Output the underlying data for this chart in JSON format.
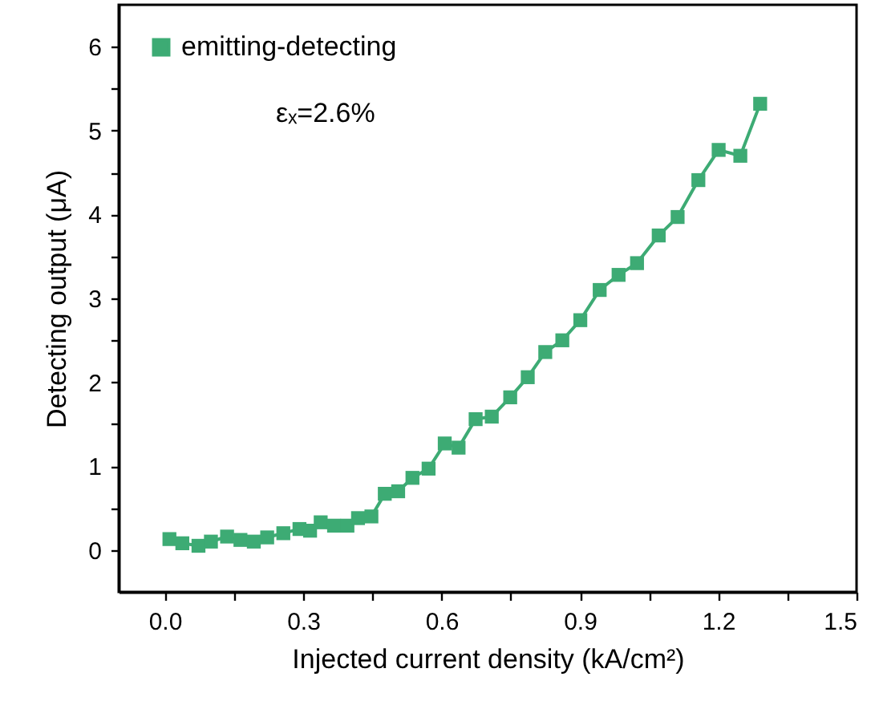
{
  "chart_data": {
    "type": "line",
    "xlabel": "Injected current density (kA/cm²)",
    "ylabel": "Detecting output (μA)",
    "annotations": [
      "εₓ=2.6%"
    ],
    "x": [
      0.01,
      0.038,
      0.073,
      0.1,
      0.135,
      0.164,
      0.193,
      0.222,
      0.257,
      0.292,
      0.315,
      0.338,
      0.367,
      0.396,
      0.419,
      0.448,
      0.477,
      0.506,
      0.537,
      0.572,
      0.607,
      0.637,
      0.674,
      0.709,
      0.749,
      0.787,
      0.825,
      0.862,
      0.901,
      0.943,
      0.984,
      1.024,
      1.071,
      1.112,
      1.157,
      1.201,
      1.248,
      1.291
    ],
    "series": [
      {
        "name": "emitting-detecting",
        "color": "#3dab74",
        "values": [
          0.13,
          0.08,
          0.05,
          0.1,
          0.16,
          0.12,
          0.1,
          0.15,
          0.2,
          0.25,
          0.23,
          0.33,
          0.29,
          0.29,
          0.38,
          0.4,
          0.67,
          0.7,
          0.86,
          0.97,
          1.27,
          1.22,
          1.56,
          1.59,
          1.82,
          2.06,
          2.36,
          2.5,
          2.74,
          3.1,
          3.28,
          3.42,
          3.75,
          3.97,
          4.41,
          4.77,
          4.7,
          5.32
        ]
      }
    ],
    "xlim": [
      -0.1,
      1.5
    ],
    "ylim": [
      -0.5,
      6.5
    ],
    "xticks": [
      {
        "value": 0,
        "label": "0.0"
      },
      {
        "value": 0.15,
        "label": null
      },
      0.3,
      {
        "value": 0.45,
        "label": null
      },
      0.6,
      {
        "value": 0.75,
        "label": null
      },
      0.9,
      {
        "value": 1.05,
        "label": null
      },
      1.2,
      {
        "value": 1.35,
        "label": null
      },
      1.5
    ],
    "yticks": [
      0,
      {
        "value": 0.5,
        "label": null
      },
      1,
      {
        "value": 1.5,
        "label": null
      },
      2,
      {
        "value": 2.5,
        "label": null
      },
      3,
      {
        "value": 3.5,
        "label": null
      },
      4,
      {
        "value": 4.5,
        "label": null
      },
      5,
      {
        "value": 5.5,
        "label": null
      },
      6
    ],
    "marker": "square",
    "legend": "top left",
    "grid": false
  }
}
